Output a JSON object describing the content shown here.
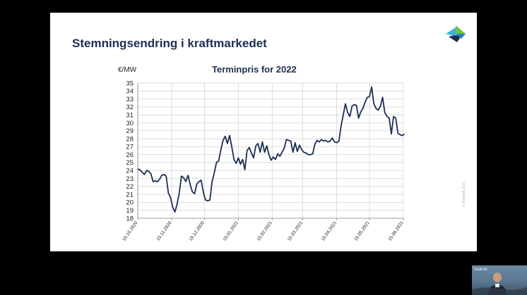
{
  "slide": {
    "title": "Stemningsendring i kraftmarkedet",
    "copyright": "© Statkraft 2021",
    "brand_colors": [
      "#1b2f52",
      "#3bb3e0",
      "#74c043"
    ]
  },
  "video_thumbnail": {
    "label": "Statkraft",
    "icon": "webcam-presenter"
  },
  "chart_data": {
    "type": "line",
    "title": "Terminpris for 2022",
    "ylabel": "€/MW",
    "xlabel": "",
    "ylim": [
      18,
      35
    ],
    "y_ticks": [
      18,
      19,
      20,
      21,
      22,
      23,
      24,
      25,
      26,
      27,
      28,
      29,
      30,
      31,
      32,
      33,
      34,
      35
    ],
    "x_ticks": [
      "15.10.2020",
      "15.11.2020",
      "15.12.2020",
      "15.01.2021",
      "15.02.2021",
      "15.03.2021",
      "15.04.2021",
      "15.05.2021",
      "15.06.2021"
    ],
    "grid": true,
    "line_color": "#1b2f52",
    "series": [
      {
        "x": [
          "2020-10-15",
          "2020-10-17",
          "2020-10-19",
          "2020-10-21",
          "2020-10-23",
          "2020-10-25",
          "2020-10-27",
          "2020-10-29",
          "2020-10-31",
          "2020-11-02",
          "2020-11-04",
          "2020-11-06",
          "2020-11-08",
          "2020-11-10",
          "2020-11-12",
          "2020-11-14",
          "2020-11-16",
          "2020-11-18",
          "2020-11-20",
          "2020-11-22",
          "2020-11-24",
          "2020-11-26",
          "2020-11-28",
          "2020-11-30",
          "2020-12-02",
          "2020-12-04",
          "2020-12-06",
          "2020-12-08",
          "2020-12-10",
          "2020-12-12",
          "2020-12-14",
          "2020-12-16",
          "2020-12-18",
          "2020-12-20",
          "2020-12-22",
          "2020-12-24",
          "2020-12-26",
          "2020-12-28",
          "2020-12-30",
          "2021-01-01",
          "2021-01-03",
          "2021-01-05",
          "2021-01-07",
          "2021-01-09",
          "2021-01-11",
          "2021-01-13",
          "2021-01-15",
          "2021-01-17",
          "2021-01-19",
          "2021-01-21",
          "2021-01-23",
          "2021-01-25",
          "2021-01-27",
          "2021-01-29",
          "2021-01-31",
          "2021-02-02",
          "2021-02-04",
          "2021-02-06",
          "2021-02-08",
          "2021-02-10",
          "2021-02-12",
          "2021-02-14",
          "2021-02-16",
          "2021-02-18",
          "2021-02-20",
          "2021-02-22",
          "2021-02-24",
          "2021-02-26",
          "2021-02-28",
          "2021-03-02",
          "2021-03-04",
          "2021-03-06",
          "2021-03-08",
          "2021-03-10",
          "2021-03-12",
          "2021-03-14",
          "2021-03-16",
          "2021-03-18",
          "2021-03-20",
          "2021-03-22",
          "2021-03-24",
          "2021-03-26",
          "2021-03-28",
          "2021-03-30",
          "2021-04-01",
          "2021-04-03",
          "2021-04-05",
          "2021-04-07",
          "2021-04-09",
          "2021-04-11",
          "2021-04-13",
          "2021-04-15",
          "2021-04-17",
          "2021-04-19",
          "2021-04-21",
          "2021-04-23",
          "2021-04-25",
          "2021-04-27",
          "2021-04-29",
          "2021-05-01",
          "2021-05-03",
          "2021-05-05",
          "2021-05-07",
          "2021-05-09",
          "2021-05-11",
          "2021-05-13",
          "2021-05-15",
          "2021-05-17",
          "2021-05-19",
          "2021-05-21",
          "2021-05-23",
          "2021-05-25",
          "2021-05-27",
          "2021-05-29",
          "2021-05-31",
          "2021-06-02",
          "2021-06-04",
          "2021-06-06",
          "2021-06-08",
          "2021-06-10",
          "2021-06-12",
          "2021-06-14",
          "2021-06-16"
        ],
        "values": [
          24.2,
          24.1,
          23.8,
          23.5,
          24.0,
          23.9,
          23.6,
          22.6,
          22.7,
          22.6,
          22.9,
          23.4,
          23.5,
          23.3,
          21.2,
          20.6,
          19.4,
          18.8,
          19.8,
          21.2,
          23.3,
          23.1,
          22.6,
          23.4,
          22.2,
          21.3,
          21.1,
          22.3,
          22.6,
          22.8,
          21.3,
          20.3,
          20.2,
          20.3,
          22.6,
          23.7,
          25.0,
          25.2,
          26.6,
          27.8,
          28.3,
          27.4,
          28.4,
          27.0,
          25.4,
          24.9,
          25.6,
          24.8,
          25.4,
          24.1,
          26.5,
          26.9,
          26.2,
          25.6,
          27.1,
          27.4,
          26.3,
          27.6,
          26.3,
          27.1,
          26.0,
          25.3,
          25.7,
          25.4,
          26.1,
          25.8,
          26.3,
          26.8,
          27.9,
          27.8,
          27.7,
          26.3,
          27.5,
          26.4,
          27.2,
          26.6,
          26.3,
          26.2,
          26.0,
          26.0,
          26.1,
          27.3,
          27.8,
          27.6,
          27.9,
          27.7,
          27.8,
          27.6,
          27.7,
          28.1,
          27.6,
          27.5,
          27.7,
          29.6,
          31.0,
          32.4,
          31.3,
          30.8,
          32.1,
          32.3,
          32.2,
          30.6,
          31.4,
          31.8,
          32.6,
          33.2,
          33.3,
          34.5,
          32.4,
          31.8,
          31.6,
          32.1,
          33.2,
          31.3,
          30.8,
          30.6,
          28.6,
          30.8,
          30.6,
          28.7,
          28.5,
          28.4,
          28.6
        ]
      }
    ]
  }
}
